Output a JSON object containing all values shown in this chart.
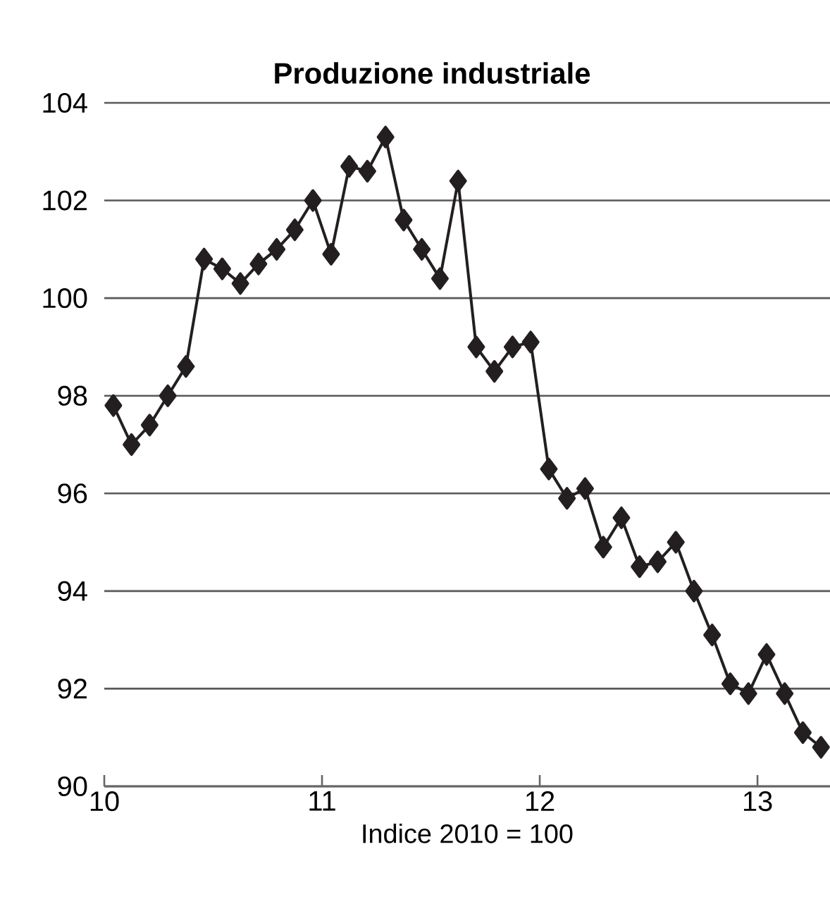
{
  "chart_data": {
    "type": "line",
    "title": "Produzione industriale",
    "xlabel": "Indice 2010 = 100",
    "x": [
      10.0417,
      10.125,
      10.2083,
      10.2917,
      10.375,
      10.4583,
      10.5417,
      10.625,
      10.7083,
      10.7917,
      10.875,
      10.9583,
      11.0417,
      11.125,
      11.2083,
      11.2917,
      11.375,
      11.4583,
      11.5417,
      11.625,
      11.7083,
      11.7917,
      11.875,
      11.9583,
      12.0417,
      12.125,
      12.2083,
      12.2917,
      12.375,
      12.4583,
      12.5417,
      12.625,
      12.7083,
      12.7917,
      12.875,
      12.9583,
      13.0417,
      13.125,
      13.2083,
      13.2917
    ],
    "series": [
      {
        "color": "#231f20",
        "values": [
          97.8,
          97.0,
          97.4,
          98.0,
          98.6,
          100.8,
          100.6,
          100.3,
          100.7,
          101.0,
          101.4,
          102.0,
          100.9,
          102.7,
          102.6,
          103.3,
          101.6,
          101.0,
          100.4,
          102.4,
          99.0,
          98.5,
          99.0,
          99.1,
          96.5,
          95.9,
          96.1,
          94.9,
          95.5,
          94.5,
          94.6,
          95.0,
          94.0,
          93.1,
          92.1,
          91.9,
          92.7,
          91.9,
          91.1,
          90.8
        ]
      }
    ],
    "xlim": [
      10,
      13.333
    ],
    "ylim": [
      90,
      104
    ],
    "xticks": [
      10,
      11,
      12,
      13
    ],
    "yticks": [
      90,
      92,
      94,
      96,
      98,
      100,
      102,
      104
    ],
    "grid": "y",
    "marker": "diamond",
    "line_style": "solid"
  }
}
